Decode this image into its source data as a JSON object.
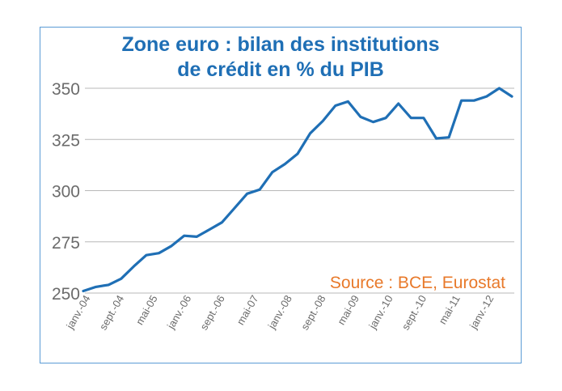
{
  "chart_data": {
    "type": "line",
    "title": "Zone euro : bilan des institutions de crédit en % du PIB",
    "title_lines": [
      "Zone euro : bilan des institutions",
      "de crédit en % du PIB"
    ],
    "source": "Source : BCE, Eurostat",
    "ylim": [
      250,
      350
    ],
    "yticks": [
      250,
      275,
      300,
      325,
      350
    ],
    "grid": "horizontal",
    "series_color": "#1f6fb5",
    "x_tick_labels": [
      "janv.-04",
      "sept.-04",
      "mai-05",
      "janv.-06",
      "sept.-06",
      "mai-07",
      "janv.-08",
      "sept.-08",
      "mai-09",
      "janv.-10",
      "sept.-10",
      "mai-11",
      "janv.-12"
    ],
    "series": [
      {
        "values": [
          251,
          253,
          254,
          257,
          263,
          268.5,
          269.5,
          273,
          278,
          277.5,
          281,
          284.5,
          291.5,
          298.5,
          300.5,
          309,
          313,
          318,
          328,
          334,
          341.5,
          343.5,
          336,
          333.5,
          335.5,
          342.5,
          335.5,
          335.5,
          325.5,
          326,
          344,
          344,
          346,
          350,
          346
        ]
      }
    ]
  }
}
